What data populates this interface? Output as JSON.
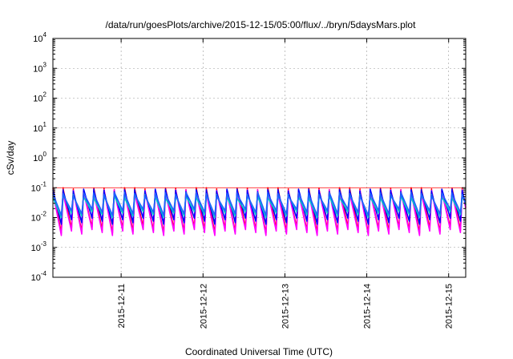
{
  "chart_data": {
    "type": "line",
    "title": "/data/run/goesPlots/archive/2015-12-15/05:00/flux/../bryn/5daysMars.plot",
    "xlabel": "Coordinated Universal Time (UTC)",
    "ylabel": "cSv/day",
    "yscale": "log",
    "ylim": [
      0.0001,
      10000
    ],
    "y_ticks": [
      {
        "base": "10",
        "exp": "-4"
      },
      {
        "base": "10",
        "exp": "-3"
      },
      {
        "base": "10",
        "exp": "-2"
      },
      {
        "base": "10",
        "exp": "-1"
      },
      {
        "base": "10",
        "exp": "0"
      },
      {
        "base": "10",
        "exp": "1"
      },
      {
        "base": "10",
        "exp": "2"
      },
      {
        "base": "10",
        "exp": "3"
      },
      {
        "base": "10",
        "exp": "4"
      }
    ],
    "xlim": [
      "2015-12-10T04:00",
      "2015-12-15T05:00"
    ],
    "x_ticks": [
      {
        "label": "2015-12-11",
        "value": "2015-12-11T00:00"
      },
      {
        "label": "2015-12-12",
        "value": "2015-12-12T00:00"
      },
      {
        "label": "2015-12-13",
        "value": "2015-12-13T00:00"
      },
      {
        "label": "2015-12-14",
        "value": "2015-12-14T00:00"
      },
      {
        "label": "2015-12-15",
        "value": "2015-12-15T00:00"
      }
    ],
    "grid": true,
    "sawtooth_period_hours": 3,
    "series": [
      {
        "color": "#ff0000",
        "peak": 0.1,
        "trough": 0.003
      },
      {
        "color": "#ff00ff",
        "peak": 0.085,
        "trough": 0.0025
      },
      {
        "color": "#0000ff",
        "peak": 0.09,
        "trough": 0.006
      },
      {
        "color": "#00c8c8",
        "peak": 0.06,
        "trough": 0.01
      },
      {
        "color": "#2060ff",
        "peak": 0.07,
        "trough": 0.012
      }
    ],
    "reference_line": {
      "value": 0.1,
      "color": "#ff0000"
    }
  }
}
